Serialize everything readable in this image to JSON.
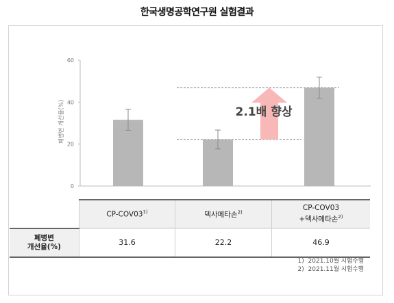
{
  "title": "한국생명공학연구원 실험결과",
  "chart_data": {
    "type": "bar",
    "ylabel": "폐병변 개선율(%)",
    "ylim": [
      0,
      60
    ],
    "yticks": [
      0,
      20,
      40,
      60
    ],
    "categories": [
      "CP-COV03",
      "덱사메타손",
      "CP-COV03 +덱사메타손"
    ],
    "values": [
      31.6,
      22.2,
      46.9
    ],
    "error": [
      5,
      4.5,
      5
    ],
    "bar_color": "#b7b7b7",
    "arrow_color": "#f9b8b8",
    "annotation": "2.1배 향상"
  },
  "table": {
    "row_label_line1": "폐병변",
    "row_label_line2": "개선율(%)",
    "headers": [
      {
        "text": "CP-COV03",
        "sup": "1)"
      },
      {
        "text": "덱사메타손",
        "sup": "2)"
      },
      {
        "line1": "CP-COV03",
        "text": "+덱사메타손",
        "sup": "2)"
      }
    ],
    "values": [
      "31.6",
      "22.2",
      "46.9"
    ]
  },
  "footnotes": [
    {
      "num": "1)",
      "text": "2021.10월 시험수행"
    },
    {
      "num": "2)",
      "text": "2021.11월 시험수행"
    }
  ]
}
